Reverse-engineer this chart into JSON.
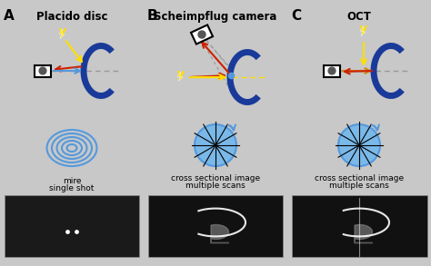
{
  "bg_color": "#c8c8c8",
  "panel_labels": [
    "A",
    "B",
    "C"
  ],
  "panel_titles": [
    "Placido disc",
    "Scheimpflug camera",
    "OCT"
  ],
  "label_fontsize": 11,
  "title_fontsize": 8.5,
  "caption_A": [
    "mire",
    "single shot"
  ],
  "caption_B": [
    "cross sectional image",
    "multiple scans"
  ],
  "caption_C": [
    "cross sectional image",
    "multiple scans"
  ],
  "blue_dark": "#1a3a9a",
  "blue_light": "#5599dd",
  "yellow": "#ffdd00",
  "red": "#cc2200",
  "gray_arrow": "#999999"
}
